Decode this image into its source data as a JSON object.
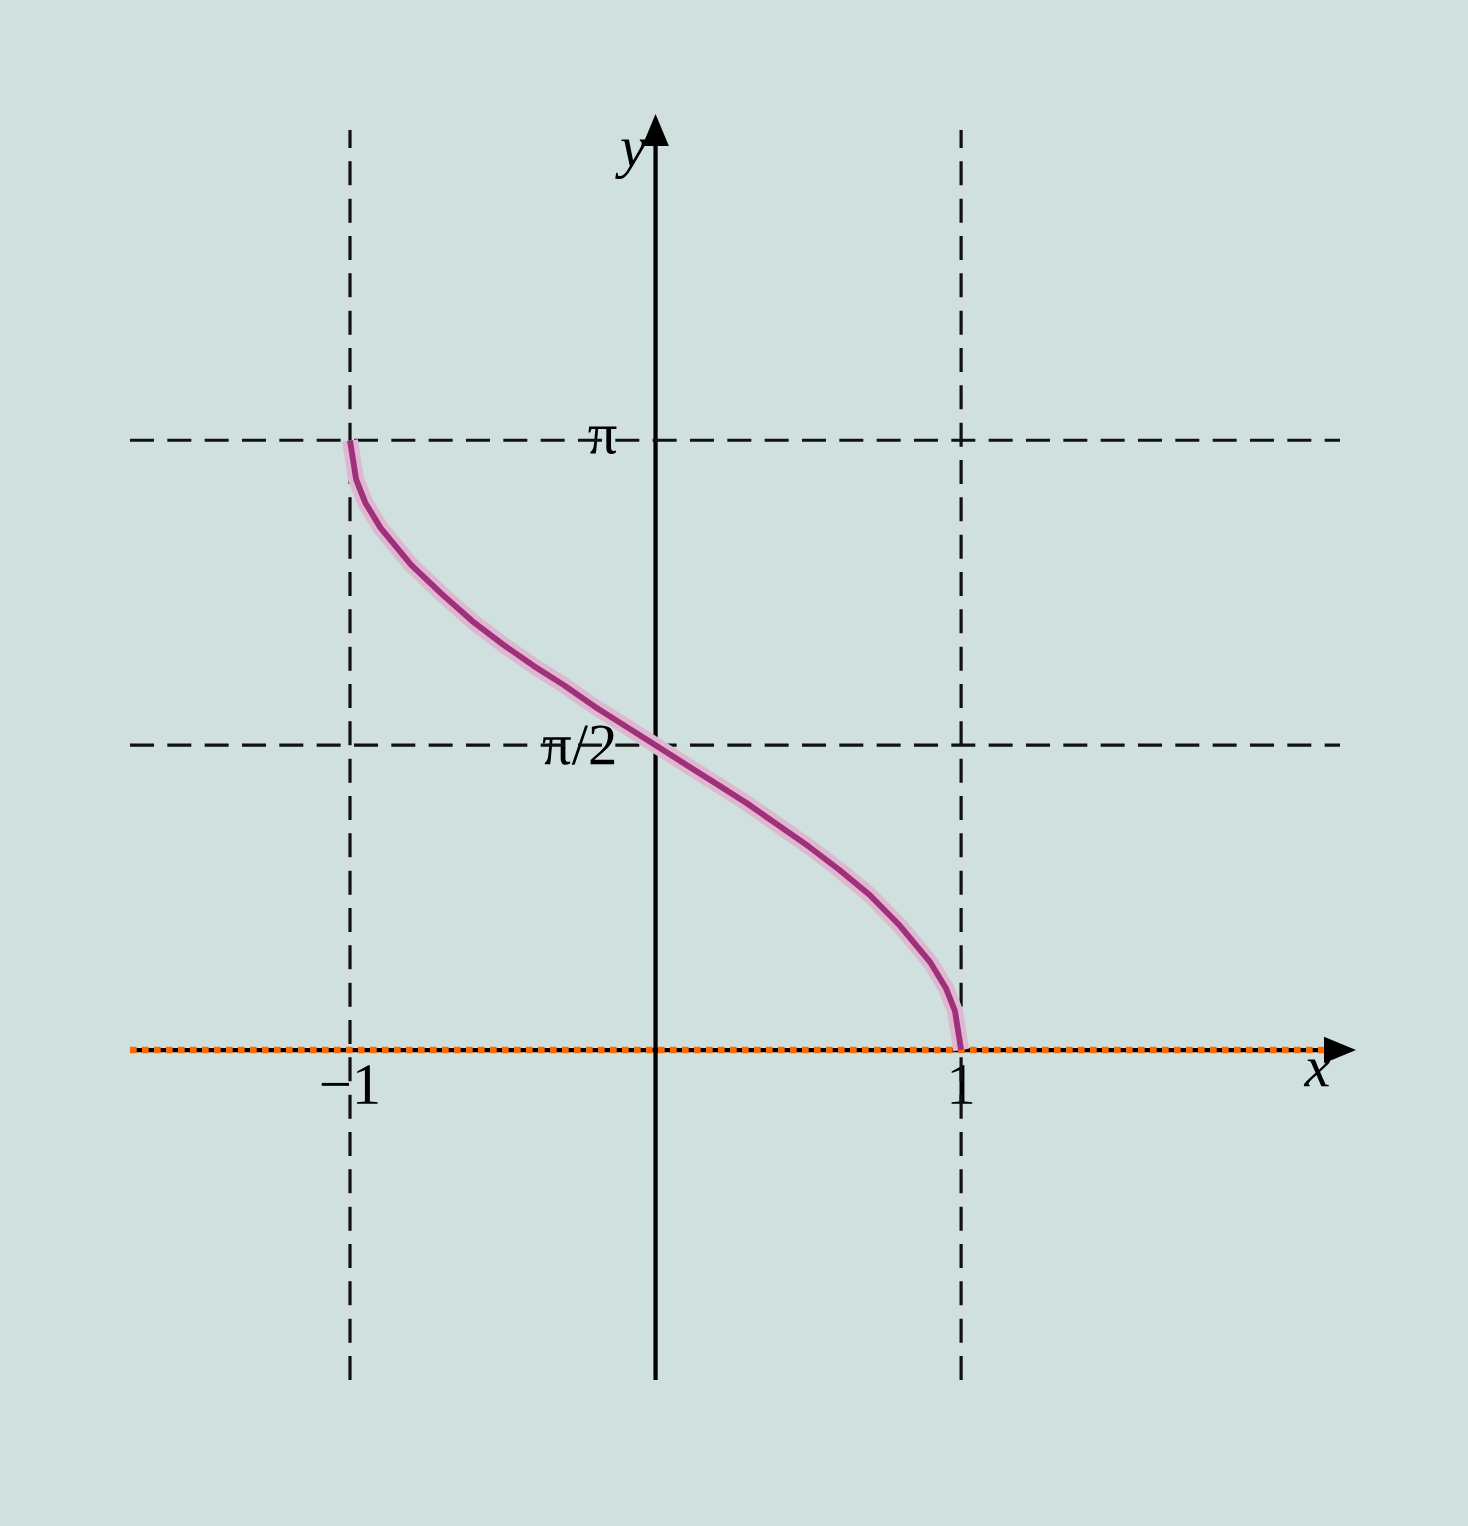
{
  "chart_data": {
    "type": "line",
    "xlabel": "x",
    "ylabel": "y",
    "xlim": [
      -1.72,
      2.24
    ],
    "ylim": [
      -1.7,
      4.74
    ],
    "xticks": [
      {
        "value": -1,
        "label": "−1"
      },
      {
        "value": 1,
        "label": "1"
      }
    ],
    "yticks": [
      {
        "value": 1.5708,
        "label": "π/2"
      },
      {
        "value": 3.1416,
        "label": "π"
      }
    ],
    "x": [
      -1,
      -0.98,
      -0.95,
      -0.9,
      -0.8,
      -0.7,
      -0.6,
      -0.5,
      -0.4,
      -0.3,
      -0.2,
      -0.1,
      0,
      0.1,
      0.2,
      0.3,
      0.4,
      0.5,
      0.6,
      0.7,
      0.8,
      0.9,
      0.95,
      0.98,
      1
    ],
    "series": [
      {
        "color": "#a0307a",
        "values": [
          3.14,
          2.94,
          2.82,
          2.69,
          2.5,
          2.35,
          2.21,
          2.09,
          1.98,
          1.88,
          1.77,
          1.67,
          1.57,
          1.47,
          1.37,
          1.27,
          1.16,
          1.05,
          0.93,
          0.8,
          0.64,
          0.45,
          0.32,
          0.2,
          0
        ]
      }
    ],
    "ref_lines": [
      {
        "axis": "x",
        "value": -1,
        "line_style": "dashed",
        "color": "#111111"
      },
      {
        "axis": "x",
        "value": 1,
        "line_style": "dashed",
        "color": "#111111"
      },
      {
        "axis": "y",
        "value": 3.1416,
        "line_style": "dashed",
        "color": "#111111"
      },
      {
        "axis": "y",
        "value": 1.5708,
        "line_style": "dashed",
        "color": "#111111"
      },
      {
        "axis": "y",
        "value": 0,
        "line_style": "dotted",
        "color": "#ff6a00"
      }
    ],
    "marker": "none",
    "line_style": "solid"
  }
}
